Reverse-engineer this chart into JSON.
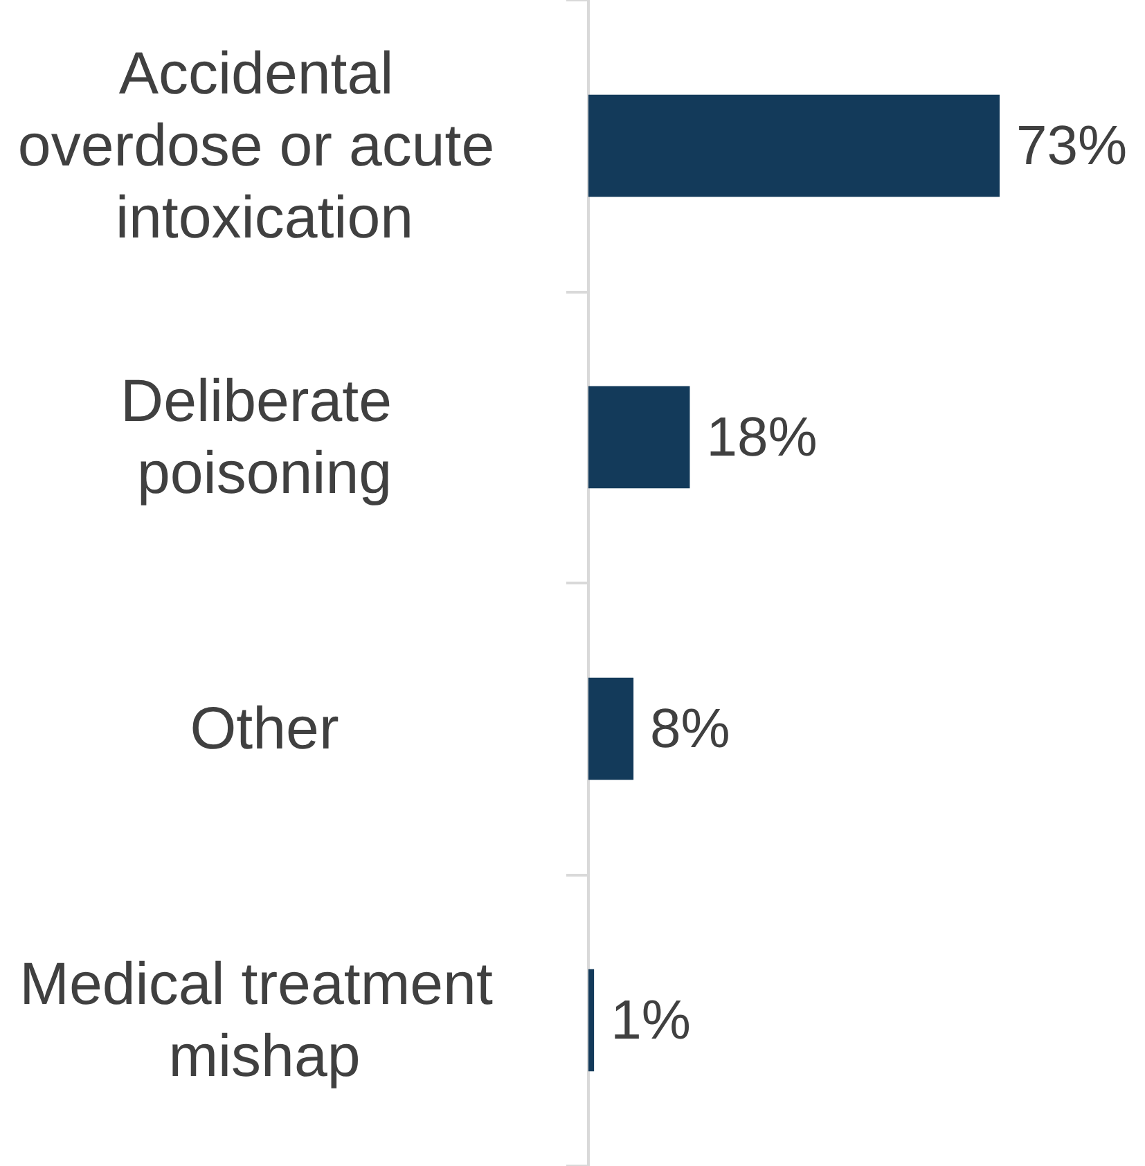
{
  "chart_data": {
    "type": "bar",
    "orientation": "horizontal",
    "categories": [
      "Accidental overdose or acute intoxication",
      "Deliberate poisoning",
      "Other",
      "Medical treatment mishap"
    ],
    "values": [
      73,
      18,
      8,
      1
    ],
    "value_labels": [
      "73%",
      "18%",
      "8%",
      "1%"
    ],
    "color": "#133a5a",
    "tick_labels": "y"
  }
}
